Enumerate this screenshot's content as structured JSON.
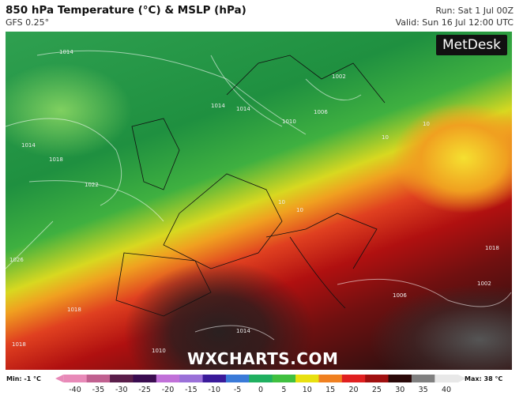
{
  "header": {
    "title": "850 hPa Temperature (°C) & MSLP (hPa)",
    "model": "GFS 0.25°",
    "run": "Run: Sat 1 Jul 00Z",
    "valid": "Valid: Sun 16 Jul 12:00 UTC"
  },
  "map": {
    "brand": "MetDesk",
    "watermark": "WXCHARTS.COM",
    "isobar_labels": [
      "1014",
      "1018",
      "1022",
      "1026",
      "1014",
      "1014",
      "1010",
      "1006",
      "1002",
      "1018",
      "1006",
      "1002",
      "1010",
      "1014",
      "1018",
      "1018",
      "1014",
      "10",
      "10",
      "10",
      "10"
    ]
  },
  "colorbar": {
    "min_label": "Min: -1 °C",
    "max_label": "Max: 38 °C",
    "ticks": [
      "-40",
      "-35",
      "-30",
      "-25",
      "-20",
      "-15",
      "-10",
      "-5",
      "0",
      "5",
      "10",
      "15",
      "20",
      "25",
      "30",
      "35",
      "40"
    ],
    "colors": [
      "#e88ab8",
      "#c0608f",
      "#5a1e4a",
      "#3a0c50",
      "#c070d8",
      "#9a70d8",
      "#3a1a9a",
      "#3a7ad8",
      "#20b060",
      "#40c040",
      "#e8e010",
      "#f08020",
      "#e02020",
      "#a01010",
      "#2a0808",
      "#808080",
      "#e8e8e8"
    ]
  }
}
